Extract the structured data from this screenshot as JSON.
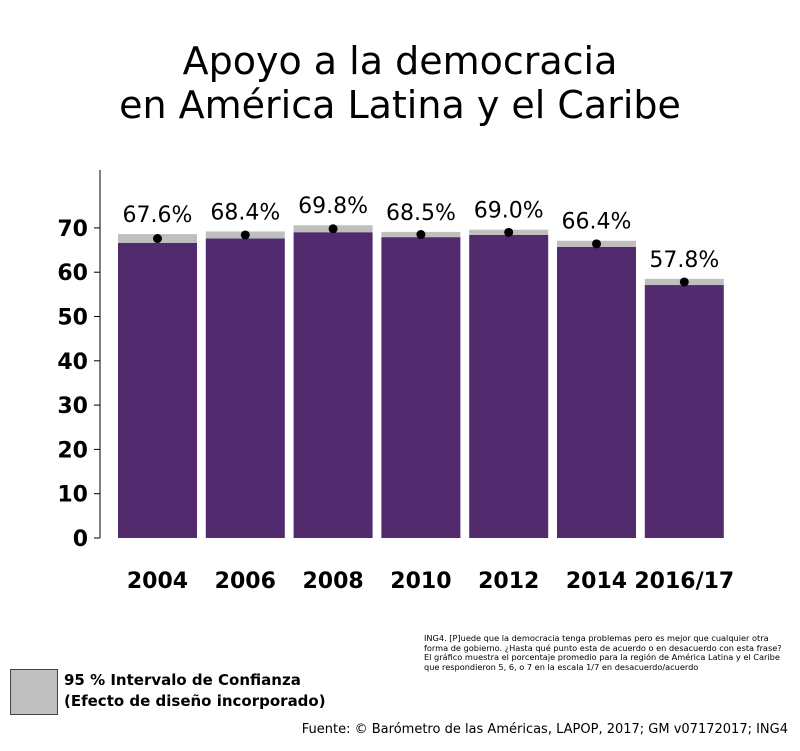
{
  "title": {
    "line1": "Apoyo a la democracia",
    "line2": "en América Latina y el Caribe"
  },
  "colors": {
    "bar": "#522a6e",
    "ci": "#bfbfbf",
    "point": "#000000"
  },
  "chart_data": {
    "type": "bar",
    "title": "Apoyo a la democracia en América Latina y el Caribe",
    "categories": [
      "2004",
      "2006",
      "2008",
      "2010",
      "2012",
      "2014",
      "2016/17"
    ],
    "values": [
      67.6,
      68.4,
      69.8,
      68.5,
      69.0,
      66.4,
      57.8
    ],
    "value_labels": [
      "67.6%",
      "68.4%",
      "69.8%",
      "68.5%",
      "69.0%",
      "66.4%",
      "57.8%"
    ],
    "ci_low": [
      66.6,
      67.6,
      69.0,
      67.9,
      68.4,
      65.7,
      57.1
    ],
    "ci_high": [
      68.6,
      69.2,
      70.6,
      69.1,
      69.6,
      67.1,
      58.5
    ],
    "yticks": [
      0,
      10,
      20,
      30,
      40,
      50,
      60,
      70
    ],
    "ylim": [
      0,
      80
    ],
    "xlabel": "",
    "ylabel": ""
  },
  "legend": {
    "line1": "95 % Intervalo de Confianza",
    "line2": "(Efecto de diseño incorporado)"
  },
  "note": "ING4. [P]uede que la democracia tenga problemas pero es mejor que cualquier otra forma de gobierno. ¿Hasta qué punto esta de acuerdo o en desacuerdo con esta frase? El gráfico muestra el porcentaje promedio para la región de América Latina y el Caribe que respondieron 5, 6, o 7 en la escala 1/7 en desacuerdo/acuerdo",
  "source": "Fuente: © Barómetro de las Américas, LAPOP, 2017; GM v07172017; ING4"
}
